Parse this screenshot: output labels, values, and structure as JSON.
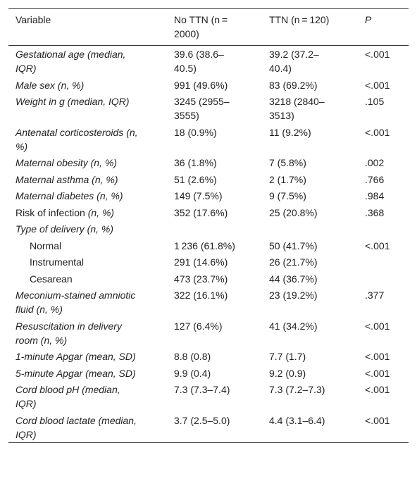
{
  "table": {
    "header": [
      "Variable",
      "No TTN (n = 2000)",
      "TTN (n = 120)",
      "P"
    ],
    "rows": [
      {
        "variable": "Gestational age (median, IQR)",
        "style": "italic",
        "no_ttn": "39.6 (38.6–40.5)",
        "ttn": "39.2 (37.2–40.4)",
        "p": "<.001"
      },
      {
        "variable": "Male sex (n, %)",
        "style": "italic",
        "no_ttn": "991 (49.6%)",
        "ttn": "83 (69.2%)",
        "p": "<.001"
      },
      {
        "variable": "Weight in g (median, IQR)",
        "style": "italic",
        "no_ttn": "3245 (2955–3555)",
        "ttn": "3218 (2840–3513)",
        "p": ".105"
      },
      {
        "variable": "Antenatal corticosteroids (n, %)",
        "style": "italic",
        "no_ttn": "18 (0.9%)",
        "ttn": "11 (9.2%)",
        "p": "<.001"
      },
      {
        "variable": "Maternal obesity (n, %)",
        "style": "italic",
        "no_ttn": "36 (1.8%)",
        "ttn": "7 (5.8%)",
        "p": ".002"
      },
      {
        "variable": "Maternal asthma (n, %)",
        "style": "italic",
        "no_ttn": "51 (2.6%)",
        "ttn": "2 (1.7%)",
        "p": ".766"
      },
      {
        "variable": "Maternal diabetes (n, %)",
        "style": "italic",
        "no_ttn": "149 (7.5%)",
        "ttn": "9 (7.5%)",
        "p": ".984"
      },
      {
        "variable": "Risk of infection",
        "note": "(n, %)",
        "style": "normal",
        "no_ttn": "352 (17.6%)",
        "ttn": "25 (20.8%)",
        "p": ".368"
      },
      {
        "variable": "Type of delivery (n, %)",
        "style": "italic"
      },
      {
        "variable": "Normal",
        "style": "indent",
        "no_ttn": "1 236 (61.8%)",
        "ttn": "50 (41.7%)",
        "p": "<.001"
      },
      {
        "variable": "Instrumental",
        "style": "indent",
        "no_ttn": "291 (14.6%)",
        "ttn": "26 (21.7%)"
      },
      {
        "variable": "Cesarean",
        "style": "indent",
        "no_ttn": "473 (23.7%)",
        "ttn": "44 (36.7%)"
      },
      {
        "variable": "Meconium-stained amniotic fluid (n, %)",
        "style": "italic",
        "no_ttn": "322 (16.1%)",
        "ttn": "23 (19.2%)",
        "p": ".377"
      },
      {
        "variable": "Resuscitation in delivery room (n, %)",
        "style": "italic",
        "no_ttn": "127 (6.4%)",
        "ttn": "41 (34.2%)",
        "p": "<.001"
      },
      {
        "variable": "1-minute Apgar (mean, SD)",
        "style": "italic",
        "no_ttn": "8.8 (0.8)",
        "ttn": "7.7 (1.7)",
        "p": "<.001"
      },
      {
        "variable": "5-minute Apgar (mean, SD)",
        "style": "italic",
        "no_ttn": "9.9 (0.4)",
        "ttn": "9.2 (0.9)",
        "p": "<.001"
      },
      {
        "variable": "Cord blood pH (median, IQR)",
        "style": "italic",
        "no_ttn": "7.3 (7.3–7.4)",
        "ttn": "7.3 (7.2–7.3)",
        "p": "<.001"
      },
      {
        "variable": "Cord blood lactate (median, IQR)",
        "style": "italic",
        "no_ttn": "3.7 (2.5–5.0)",
        "ttn": "4.4 (3.1–6.4)",
        "p": "<.001"
      }
    ]
  }
}
